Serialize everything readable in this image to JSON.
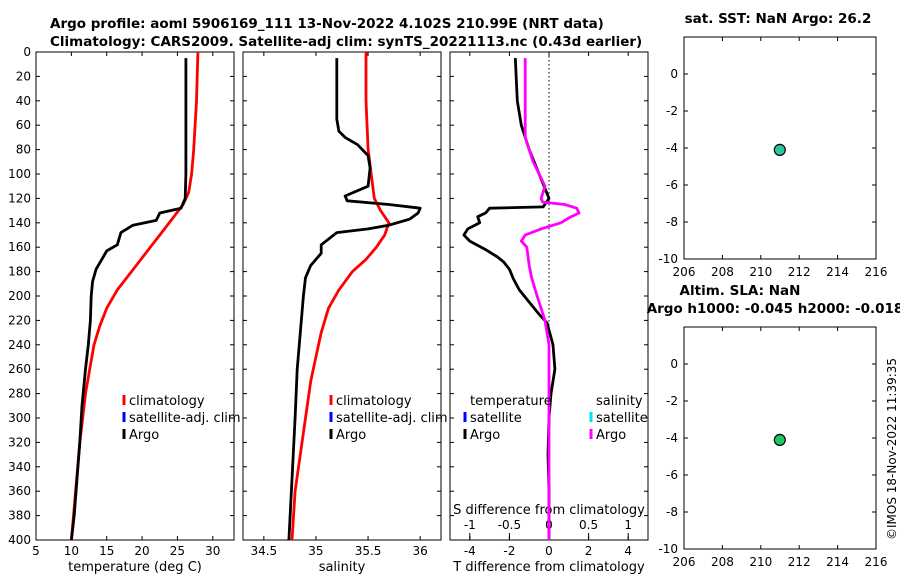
{
  "header": {
    "title_line1": "Argo profile: aoml 5906169_111 13-Nov-2022 4.102S 210.99E (NRT data)",
    "title_line2": "Climatology: CARS2009. Satellite-adj clim: synTS_20221113.nc (0.43d earlier)"
  },
  "timestamp": "©IMOS 18-Nov-2022 11:39:35",
  "colors": {
    "climatology": "#ff0000",
    "satellite": "#0000ff",
    "argo": "#000000",
    "argo_salinity_diff": "#ff00ff",
    "satellite_salinity": "#00e5e5",
    "marker_sst": "#2ec4a0",
    "marker_sla": "#22c55e"
  },
  "chart_data": [
    {
      "type": "line",
      "id": "temperature_profile",
      "xlabel": "temperature (deg C)",
      "xlim": [
        5,
        33
      ],
      "ylim": [
        400,
        0
      ],
      "xticks": [
        5,
        10,
        15,
        20,
        25,
        30
      ],
      "yticks": [
        0,
        20,
        40,
        60,
        80,
        100,
        120,
        140,
        160,
        180,
        200,
        220,
        240,
        260,
        280,
        300,
        320,
        340,
        360,
        380,
        400
      ],
      "legend": [
        "climatology",
        "satellite-adj. clim",
        "Argo"
      ],
      "series": [
        {
          "name": "climatology",
          "points": [
            [
              27.9,
              0
            ],
            [
              27.8,
              20
            ],
            [
              27.7,
              40
            ],
            [
              27.5,
              60
            ],
            [
              27.3,
              80
            ],
            [
              27.0,
              100
            ],
            [
              26.6,
              115
            ],
            [
              25.8,
              125
            ],
            [
              24.5,
              135
            ],
            [
              22.5,
              150
            ],
            [
              20.5,
              165
            ],
            [
              18.5,
              180
            ],
            [
              16.5,
              195
            ],
            [
              15.0,
              210
            ],
            [
              14.0,
              225
            ],
            [
              13.2,
              240
            ],
            [
              12.6,
              260
            ],
            [
              12.0,
              280
            ],
            [
              11.6,
              300
            ],
            [
              11.2,
              320
            ],
            [
              10.9,
              340
            ],
            [
              10.6,
              360
            ],
            [
              10.3,
              380
            ],
            [
              10.0,
              400
            ]
          ]
        },
        {
          "name": "Argo",
          "points": [
            [
              26.2,
              5
            ],
            [
              26.2,
              20
            ],
            [
              26.2,
              60
            ],
            [
              26.2,
              100
            ],
            [
              26.1,
              120
            ],
            [
              25.5,
              128
            ],
            [
              22.5,
              132
            ],
            [
              22.0,
              138
            ],
            [
              18.7,
              142
            ],
            [
              17.0,
              148
            ],
            [
              16.5,
              158
            ],
            [
              15.0,
              163
            ],
            [
              14.3,
              170
            ],
            [
              13.5,
              178
            ],
            [
              13.0,
              188
            ],
            [
              12.8,
              200
            ],
            [
              12.7,
              220
            ],
            [
              12.4,
              240
            ],
            [
              12.0,
              260
            ],
            [
              11.5,
              290
            ],
            [
              11.2,
              320
            ],
            [
              10.8,
              350
            ],
            [
              10.4,
              380
            ],
            [
              10.0,
              400
            ]
          ]
        }
      ]
    },
    {
      "type": "line",
      "id": "salinity_profile",
      "xlabel": "salinity",
      "xlim": [
        34.3,
        36.2
      ],
      "ylim": [
        400,
        0
      ],
      "xticks": [
        34.5,
        35,
        35.5,
        36
      ],
      "legend": [
        "climatology",
        "satellite-adj. clim",
        "Argo"
      ],
      "series": [
        {
          "name": "climatology",
          "points": [
            [
              35.48,
              0
            ],
            [
              35.48,
              40
            ],
            [
              35.5,
              80
            ],
            [
              35.53,
              100
            ],
            [
              35.56,
              120
            ],
            [
              35.62,
              130
            ],
            [
              35.7,
              140
            ],
            [
              35.66,
              150
            ],
            [
              35.58,
              160
            ],
            [
              35.48,
              170
            ],
            [
              35.35,
              180
            ],
            [
              35.22,
              195
            ],
            [
              35.12,
              210
            ],
            [
              35.05,
              230
            ],
            [
              35.0,
              250
            ],
            [
              34.95,
              270
            ],
            [
              34.9,
              300
            ],
            [
              34.85,
              330
            ],
            [
              34.8,
              360
            ],
            [
              34.77,
              400
            ]
          ]
        },
        {
          "name": "Argo",
          "points": [
            [
              35.2,
              5
            ],
            [
              35.2,
              40
            ],
            [
              35.2,
              55
            ],
            [
              35.22,
              65
            ],
            [
              35.28,
              70
            ],
            [
              35.4,
              76
            ],
            [
              35.5,
              85
            ],
            [
              35.52,
              95
            ],
            [
              35.5,
              110
            ],
            [
              35.28,
              118
            ],
            [
              35.3,
              122
            ],
            [
              35.7,
              125
            ],
            [
              36.0,
              128
            ],
            [
              35.98,
              132
            ],
            [
              35.9,
              137
            ],
            [
              35.7,
              142
            ],
            [
              35.5,
              145
            ],
            [
              35.2,
              148
            ],
            [
              35.05,
              158
            ],
            [
              35.05,
              165
            ],
            [
              34.95,
              175
            ],
            [
              34.9,
              185
            ],
            [
              34.88,
              200
            ],
            [
              34.85,
              230
            ],
            [
              34.82,
              260
            ],
            [
              34.8,
              300
            ],
            [
              34.77,
              350
            ],
            [
              34.74,
              400
            ]
          ]
        }
      ]
    },
    {
      "type": "line",
      "id": "difference_profile",
      "xlabel": "T difference from climatology",
      "xlabel_top": "S difference from climatology",
      "xlim": [
        -5,
        5
      ],
      "xlim_top": [
        -1.25,
        1.25
      ],
      "ylim": [
        400,
        0
      ],
      "xticks": [
        -4,
        -2,
        0,
        2,
        4
      ],
      "xticks_top": [
        -1,
        -0.5,
        0,
        0.5,
        1
      ],
      "legend_temperature_title": "temperature",
      "legend_salinity_title": "salinity",
      "legend_temperature": [
        "satellite",
        "Argo"
      ],
      "legend_salinity": [
        "satellite",
        "Argo"
      ],
      "series": [
        {
          "name": "Argo temperature difference",
          "axis": "T",
          "points": [
            [
              -1.7,
              5
            ],
            [
              -1.6,
              40
            ],
            [
              -1.4,
              60
            ],
            [
              -1.0,
              80
            ],
            [
              -0.5,
              100
            ],
            [
              0.0,
              120
            ],
            [
              -0.3,
              127
            ],
            [
              -3.0,
              128
            ],
            [
              -3.2,
              132
            ],
            [
              -3.6,
              135
            ],
            [
              -3.5,
              140
            ],
            [
              -4.1,
              145
            ],
            [
              -4.3,
              150
            ],
            [
              -4.0,
              155
            ],
            [
              -3.2,
              162
            ],
            [
              -2.6,
              168
            ],
            [
              -2.3,
              172
            ],
            [
              -2.0,
              178
            ],
            [
              -1.8,
              186
            ],
            [
              -1.5,
              195
            ],
            [
              -1.0,
              205
            ],
            [
              -0.5,
              215
            ],
            [
              -0.1,
              222
            ],
            [
              0.2,
              240
            ],
            [
              0.3,
              260
            ],
            [
              0.1,
              280
            ],
            [
              0.0,
              300
            ],
            [
              -0.05,
              330
            ],
            [
              0.0,
              360
            ],
            [
              0.0,
              400
            ]
          ]
        },
        {
          "name": "Argo salinity difference",
          "axis": "S",
          "points": [
            [
              -0.3,
              5
            ],
            [
              -0.3,
              40
            ],
            [
              -0.3,
              70
            ],
            [
              -0.2,
              90
            ],
            [
              -0.05,
              110
            ],
            [
              -0.1,
              120
            ],
            [
              -0.08,
              123
            ],
            [
              0.2,
              125
            ],
            [
              0.35,
              128
            ],
            [
              0.38,
              132
            ],
            [
              0.25,
              136
            ],
            [
              0.15,
              140
            ],
            [
              -0.1,
              145
            ],
            [
              -0.3,
              150
            ],
            [
              -0.35,
              155
            ],
            [
              -0.28,
              160
            ],
            [
              -0.25,
              175
            ],
            [
              -0.22,
              185
            ],
            [
              -0.15,
              200
            ],
            [
              -0.05,
              220
            ],
            [
              0.0,
              240
            ],
            [
              0.0,
              300
            ],
            [
              0.0,
              400
            ]
          ]
        }
      ]
    },
    {
      "type": "scatter",
      "id": "sst_panel",
      "title": "sat. SST: NaN Argo: 26.2",
      "xlim": [
        206,
        216
      ],
      "ylim": [
        -10,
        2
      ],
      "xticks": [
        206,
        208,
        210,
        212,
        214,
        216
      ],
      "yticks": [
        0,
        -2,
        -4,
        -6,
        -8,
        -10
      ],
      "points": [
        [
          210.99,
          -4.102
        ]
      ]
    },
    {
      "type": "scatter",
      "id": "sla_panel",
      "title": "Altim. SLA: NaN",
      "title_line2": "Argo h1000: -0.045 h2000: -0.018",
      "xlim": [
        206,
        216
      ],
      "ylim": [
        -10,
        2
      ],
      "xticks": [
        206,
        208,
        210,
        212,
        214,
        216
      ],
      "yticks": [
        0,
        -2,
        -4,
        -6,
        -8,
        -10
      ],
      "points": [
        [
          210.99,
          -4.102
        ]
      ]
    }
  ]
}
